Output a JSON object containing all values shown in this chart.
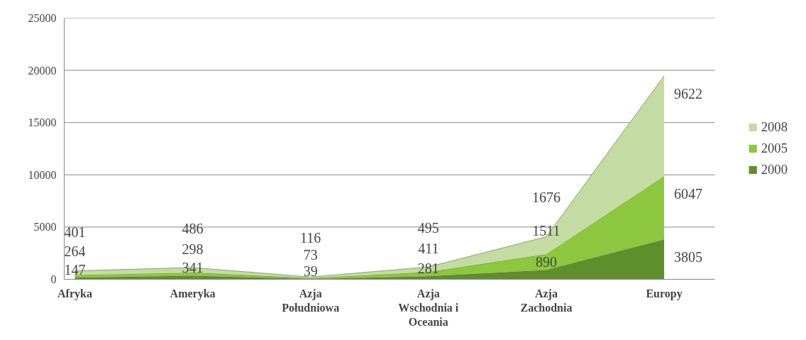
{
  "chart_data": {
    "type": "area",
    "stacked": true,
    "categories": [
      "Afryka",
      "Ameryka",
      "Azja\nPołudniowa",
      "Azja\nWschodnia i\nOceania",
      "Azja\nZachodnia",
      "Europy"
    ],
    "series": [
      {
        "name": "2000",
        "color": "#5f8f2c",
        "values": [
          147,
          341,
          39,
          281,
          890,
          3805
        ]
      },
      {
        "name": "2005",
        "color": "#8dc63f",
        "values": [
          264,
          298,
          73,
          411,
          1511,
          6047
        ]
      },
      {
        "name": "2008",
        "color": "#c5dba4",
        "values": [
          401,
          486,
          116,
          495,
          1676,
          9622
        ]
      }
    ],
    "ylim": [
      0,
      25000
    ],
    "yticks": [
      0,
      5000,
      10000,
      15000,
      20000,
      25000
    ],
    "grid": "y",
    "legend": "right",
    "data_labels": true
  }
}
